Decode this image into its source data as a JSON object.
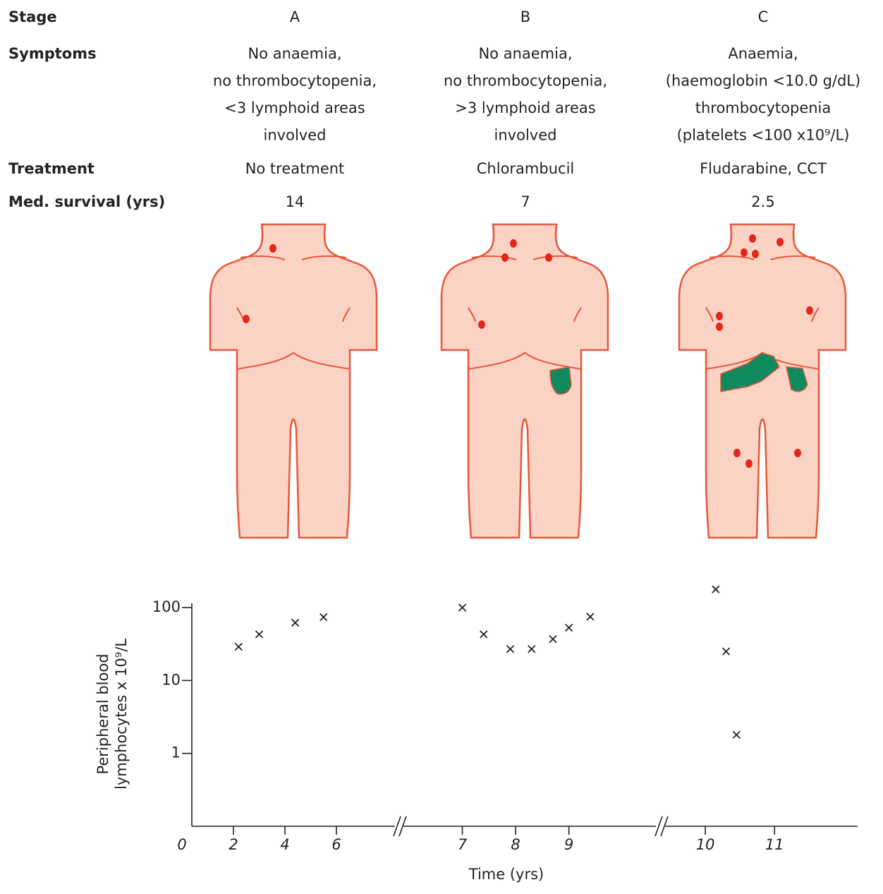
{
  "header": {
    "row_labels": [
      "Stage",
      "Symptoms",
      "Treatment",
      "Med. survival (yrs)"
    ]
  },
  "stages": [
    {
      "stage": "A",
      "symptoms": [
        "No anaemia,",
        "no thrombocytopenia,",
        "<3 lymphoid areas",
        "involved"
      ],
      "treatment": "No treatment",
      "median_survival": 14
    },
    {
      "stage": "B",
      "symptoms": [
        "No anaemia,",
        "no thrombocytopenia,",
        ">3 lymphoid areas",
        "involved"
      ],
      "treatment": "Chlorambucil",
      "median_survival": 7
    },
    {
      "stage": "C",
      "symptoms": [
        "Anaemia,",
        "(haemoglobin <10.0 g/dL)",
        "thrombocytopenia",
        "(platelets <100 x10⁹/L)"
      ],
      "treatment": "Fludarabine, CCT",
      "median_survival": 2.5
    }
  ],
  "chart_data": {
    "type": "scatter",
    "ylabel": [
      "Peripheral blood",
      "lymphocytes x 10⁹/L"
    ],
    "xlabel": "Time (yrs)",
    "yscale": "log",
    "ylim": [
      0.1,
      250
    ],
    "yticks": [
      1,
      10,
      100
    ],
    "color": "#222222",
    "segments": [
      {
        "xlim": [
          0,
          8
        ],
        "xticks": [
          0,
          2,
          4,
          6
        ],
        "x": [
          2.2,
          3,
          4.4,
          5.5
        ],
        "values": [
          29,
          43,
          62,
          74
        ]
      },
      {
        "xlim": [
          6,
          10.5
        ],
        "xticks": [
          7,
          8,
          9
        ],
        "x": [
          7.0,
          7.4,
          7.9,
          8.3,
          8.7,
          9.0,
          9.4
        ],
        "values": [
          100,
          43,
          27,
          27,
          37,
          53,
          75
        ]
      },
      {
        "xlim": [
          9.5,
          12.2
        ],
        "xticks": [
          10,
          11
        ],
        "x": [
          10.15,
          10.3,
          10.45
        ],
        "values": [
          178,
          25,
          1.8
        ]
      }
    ]
  }
}
